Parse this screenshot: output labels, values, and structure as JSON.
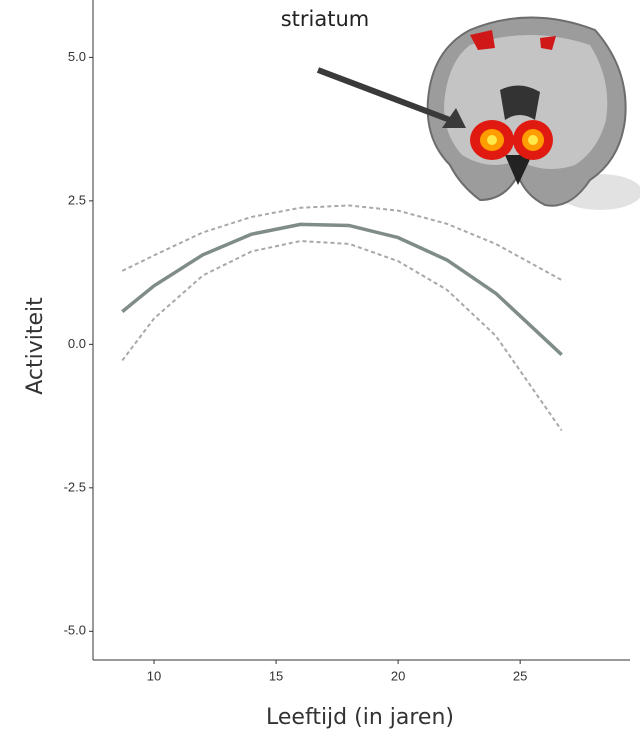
{
  "chart_data": {
    "type": "line",
    "x_label": "Leeftijd (in jaren)",
    "y_label": "Activiteit",
    "annotation": "striatum",
    "x": [
      8.7,
      10,
      12,
      14,
      16,
      18,
      20,
      22,
      24,
      26.7
    ],
    "series": [
      {
        "color": "#7f8c8a",
        "style": "solid",
        "values": [
          0.57,
          1.02,
          1.56,
          1.92,
          2.09,
          2.07,
          1.86,
          1.47,
          0.89,
          -0.18
        ]
      },
      {
        "color": "#a8a8a8",
        "style": "dashed",
        "values": [
          1.28,
          1.55,
          1.95,
          2.22,
          2.38,
          2.42,
          2.33,
          2.1,
          1.75,
          1.12
        ]
      },
      {
        "color": "#a8a8a8",
        "style": "dashed",
        "values": [
          -0.28,
          0.45,
          1.2,
          1.62,
          1.8,
          1.75,
          1.45,
          0.95,
          0.15,
          -1.5
        ]
      }
    ],
    "xlim": [
      7.5,
      29.5
    ],
    "xticks": [
      10,
      15,
      20,
      25
    ],
    "ylim": [
      -5.5,
      6
    ],
    "yticks": [
      {
        "value": 5,
        "label": "5.0"
      },
      {
        "value": 2.5,
        "label": "2.5"
      },
      {
        "value": 0,
        "label": "0.0"
      },
      {
        "value": -2.5,
        "label": "-2.5"
      },
      {
        "value": -5,
        "label": "-5.0"
      }
    ],
    "grid": false
  }
}
